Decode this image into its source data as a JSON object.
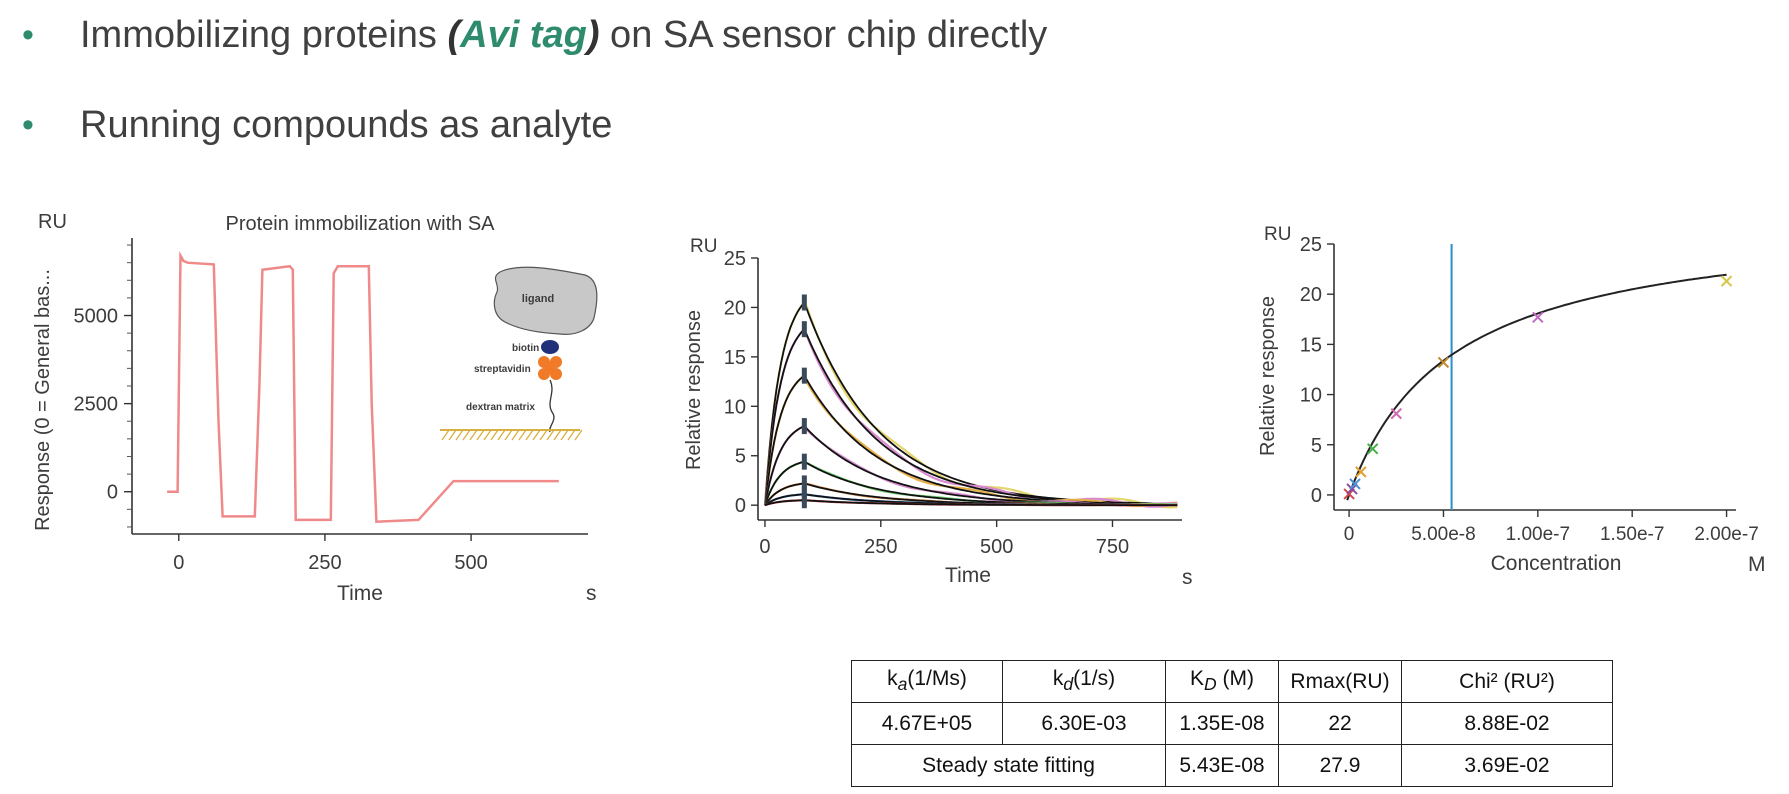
{
  "bullets": [
    {
      "pre": "Immobilizing proteins ",
      "paren_open": "(",
      "highlight": "Avi tag",
      "paren_close": ")",
      "post": " on SA sensor chip directly"
    },
    {
      "text": "Running compounds as analyte"
    }
  ],
  "colors": {
    "accent": "#2e8b6e",
    "immob_trace": "#f08a8a",
    "fit_line": "#111111",
    "kd_line": "#2a8fc8"
  },
  "chart_data": [
    {
      "type": "line",
      "title": "Protein immobilization with SA",
      "xlabel": "Time",
      "xunit": "s",
      "ylabel": "Response (0 = General bas...",
      "yunit": "RU",
      "xlim": [
        -80,
        700
      ],
      "ylim": [
        -1200,
        7200
      ],
      "xticks": [
        0,
        250,
        500
      ],
      "yticks": [
        0,
        2500,
        5000
      ],
      "series": [
        {
          "x": [
            -20,
            -2,
            3,
            8,
            15,
            60,
            68,
            75,
            130,
            138,
            143,
            190,
            195,
            200,
            260,
            265,
            272,
            325,
            330,
            338,
            410,
            470,
            650
          ],
          "y": [
            0,
            0,
            6700,
            6550,
            6500,
            6450,
            2000,
            -700,
            -700,
            3000,
            6300,
            6400,
            6300,
            -800,
            -800,
            6200,
            6400,
            6400,
            2500,
            -850,
            -800,
            300,
            300
          ]
        }
      ],
      "inset": {
        "labels": {
          "ligand": "ligand",
          "biotin": "biotin",
          "streptavidin": "streptavidin",
          "matrix": "dextran matrix"
        }
      }
    },
    {
      "type": "line",
      "title": "",
      "xlabel": "Time",
      "xunit": "s",
      "ylabel": "Relative response",
      "yunit": "RU",
      "xlim": [
        -15,
        900
      ],
      "ylim": [
        -1.5,
        25
      ],
      "xticks": [
        0,
        250,
        500,
        750
      ],
      "yticks": [
        0,
        5,
        10,
        15,
        20,
        25
      ],
      "association_end": 85,
      "curves": [
        {
          "peak": 20.5,
          "color": "#e3d66a"
        },
        {
          "peak": 17.8,
          "color": "#d98ad0"
        },
        {
          "peak": 13.1,
          "color": "#e5b04a"
        },
        {
          "peak": 8.0,
          "color": "#d98ad0"
        },
        {
          "peak": 4.4,
          "color": "#6fcf6f"
        },
        {
          "peak": 2.2,
          "color": "#e08a40"
        },
        {
          "peak": 1.1,
          "color": "#4a90d9"
        },
        {
          "peak": 0.5,
          "color": "#d44a4a"
        }
      ]
    },
    {
      "type": "scatter",
      "title": "",
      "xlabel": "Concentration",
      "xunit": "M",
      "ylabel": "Relative response",
      "yunit": "RU",
      "xlim": [
        -8e-09,
        2.05e-07
      ],
      "ylim": [
        -1.5,
        25
      ],
      "xticks": [
        0,
        5e-08,
        1e-07,
        1.5e-07,
        2e-07
      ],
      "xtick_labels": [
        "0",
        "5.00e-8",
        "1.00e-7",
        "1.50e-7",
        "2.00e-7"
      ],
      "yticks": [
        0,
        5,
        10,
        15,
        20,
        25
      ],
      "kd_line_x": 5.43e-08,
      "points": [
        {
          "x": 0,
          "y": 0.1,
          "color": "#d44a4a"
        },
        {
          "x": 1.5625e-09,
          "y": 0.6,
          "color": "#8a4aa0"
        },
        {
          "x": 3.125e-09,
          "y": 1.1,
          "color": "#4a90d9"
        },
        {
          "x": 6.25e-09,
          "y": 2.3,
          "color": "#e0a030"
        },
        {
          "x": 1.25e-08,
          "y": 4.6,
          "color": "#4ab04a"
        },
        {
          "x": 2.5e-08,
          "y": 8.1,
          "color": "#d06ab0"
        },
        {
          "x": 5e-08,
          "y": 13.2,
          "color": "#c08a30"
        },
        {
          "x": 1e-07,
          "y": 17.7,
          "color": "#c06ac0"
        },
        {
          "x": 2e-07,
          "y": 21.3,
          "color": "#d8c84a"
        }
      ]
    }
  ],
  "table": {
    "header": {
      "ka_main": "k",
      "ka_sub": "a",
      "ka_unit": "(1/Ms)",
      "kd_main": "k",
      "kd_sub": "d",
      "kd_unit": "(1/s)",
      "KD_main": "K",
      "KD_sub": "D",
      "KD_unit": " (M)",
      "rmax": "Rmax(RU)",
      "chi": "Chi² (RU²)"
    },
    "row1": {
      "ka": "4.67E+05",
      "kd": "6.30E-03",
      "KD": "1.35E-08",
      "rmax": "22",
      "chi": "8.88E-02"
    },
    "row2": {
      "label": "Steady state fitting",
      "KD": "5.43E-08",
      "rmax": "27.9",
      "chi": "3.69E-02"
    }
  }
}
